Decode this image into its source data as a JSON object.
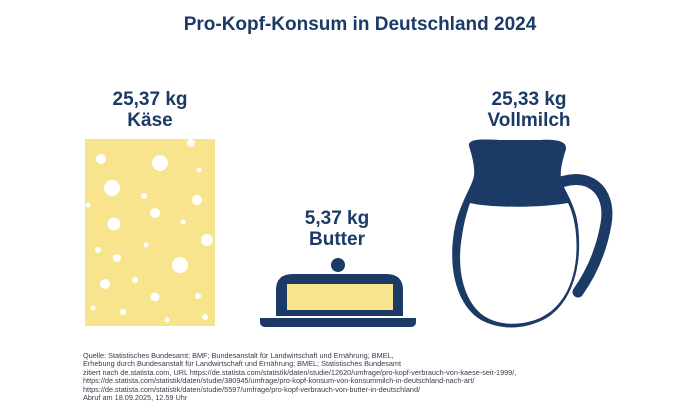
{
  "title": "Pro-Kopf-Konsum in Deutschland 2024",
  "chart_data": {
    "type": "pictogram",
    "title": "Pro-Kopf-Konsum in Deutschland 2024",
    "unit": "kg",
    "items": [
      {
        "id": "kaese",
        "value_label": "25,37 kg",
        "name": "Käse",
        "value": 25.37,
        "icon": "cheese-icon"
      },
      {
        "id": "butter",
        "value_label": "5,37 kg",
        "name": "Butter",
        "value": 5.37,
        "icon": "butter-dish-icon"
      },
      {
        "id": "milch",
        "value_label": "25,33 kg",
        "name": "Vollmilch",
        "value": 25.33,
        "icon": "milk-jug-icon"
      }
    ]
  },
  "colors": {
    "navy": "#1b3a66",
    "cheese": "#f7e48c",
    "butter": "#f7e48c",
    "holes": "#ffffff"
  },
  "source_lines": [
    "Quelle: Statistisches Bundesamt; BMF; Bundesanstalt für Landwirtschaft und Ernährung; BMEL,",
    "Erhebung durch Bundesanstalt für Landwirtschaft und Ernährung; BMEL; Statistisches Bundesamt",
    "zitiert nach de.statista.com, URL https://de.statista.com/statistik/daten/studie/12620/umfrage/pro-kopf-verbrauch-von-kaese-seit-1999/,",
    "https://de.statista.com/statistik/daten/studie/380945/umfrage/pro-kopf-konsum-von-konsummilch-in-deutschland-nach-art/",
    "https://de.statista.com/statistik/daten/studie/5597/umfrage/pro-kopf-verbrauch-von-butter-in-deutschland/",
    "Abruf am 18.09.2025, 12.59 Uhr"
  ]
}
